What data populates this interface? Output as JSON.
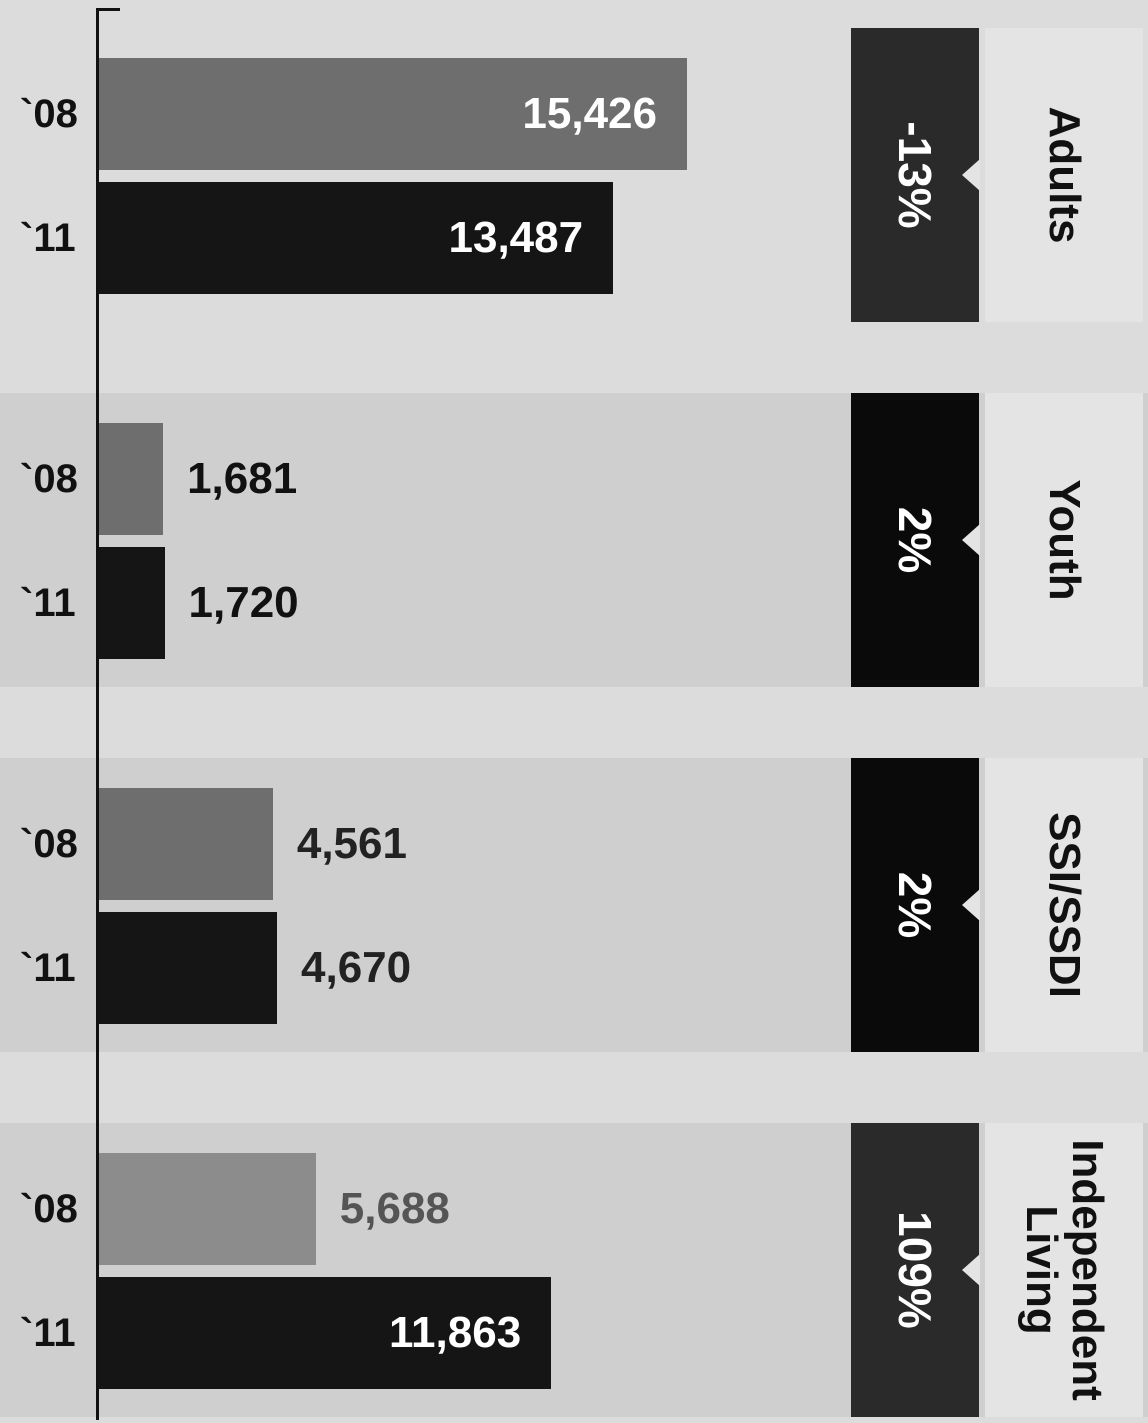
{
  "chart_data": {
    "type": "bar",
    "orientation": "horizontal",
    "series": [
      {
        "name": "`08",
        "color": "#6e6e6e"
      },
      {
        "name": "`11",
        "color": "#151515"
      }
    ],
    "groups": [
      {
        "category": "Adults",
        "change": "-13%",
        "values": [
          15426,
          13487
        ],
        "labels": [
          "15,426",
          "13,487"
        ],
        "year_labels": [
          "`08",
          "`11"
        ]
      },
      {
        "category": "Youth",
        "change": "2%",
        "values": [
          1681,
          1720
        ],
        "labels": [
          "1,681",
          "1,720"
        ],
        "year_labels": [
          "`08",
          "`11"
        ]
      },
      {
        "category": "SSI/SSDI",
        "change": "2%",
        "values": [
          4561,
          4670
        ],
        "labels": [
          "4,561",
          "4,670"
        ],
        "year_labels": [
          "`08",
          "`11"
        ]
      },
      {
        "category": "Independent\nLiving",
        "change": "109%",
        "values": [
          5688,
          11863
        ],
        "labels": [
          "5,688",
          "11,863"
        ],
        "year_labels": [
          "`08",
          "`11"
        ]
      }
    ],
    "xlim": [
      0,
      15426
    ],
    "grid": false,
    "legend": "none"
  },
  "colors": {
    "background": "#dcdcdc",
    "band": "#cfcfcf",
    "bar_08": "#6e6e6e",
    "bar_11": "#151515",
    "bar_08_light": "#8c8c8c",
    "pct_box": "#2a2a2a",
    "pct_box_dark": "#0a0a0a",
    "category_box": "#e4e4e4"
  }
}
